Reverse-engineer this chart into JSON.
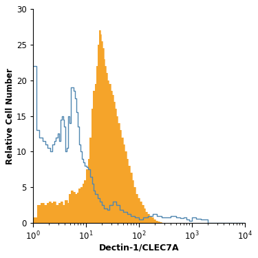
{
  "title": "",
  "xlabel": "Dectin-1/CLEC7A",
  "ylabel": "Relative Cell Number",
  "xlim_log": [
    1,
    10000
  ],
  "ylim": [
    0,
    30
  ],
  "yticks": [
    0,
    5,
    10,
    15,
    20,
    25,
    30
  ],
  "background_color": "#ffffff",
  "blue_color": "#4f86b0",
  "orange_fill_color": "#f5a42a",
  "blue_data": {
    "x": [
      1.0,
      1.15,
      1.3,
      1.5,
      1.7,
      1.9,
      2.1,
      2.3,
      2.5,
      2.7,
      2.9,
      3.1,
      3.3,
      3.5,
      3.7,
      3.9,
      4.1,
      4.3,
      4.6,
      4.9,
      5.2,
      5.5,
      5.8,
      6.2,
      6.6,
      7.0,
      7.4,
      7.9,
      8.4,
      8.9,
      9.5,
      10.2,
      11.0,
      12.0,
      13.0,
      14.0,
      15.0,
      16.5,
      18.0,
      20.0,
      22.0,
      25.0,
      28.0,
      32.0,
      37.0,
      43.0,
      50.0,
      60.0,
      70.0,
      85.0,
      100.0,
      120.0,
      150.0,
      180.0,
      220.0,
      270.0,
      330.0,
      400.0,
      500.0,
      600.0,
      700.0,
      800.0,
      900.0,
      1000.0,
      1200.0,
      1500.0,
      2000.0,
      3000.0,
      5000.0,
      10000.0
    ],
    "y": [
      22.0,
      13.0,
      12.0,
      11.5,
      11.0,
      10.5,
      10.0,
      11.0,
      11.5,
      12.0,
      12.5,
      11.5,
      14.5,
      15.0,
      14.5,
      13.5,
      10.0,
      10.5,
      15.0,
      14.0,
      19.0,
      19.0,
      18.5,
      17.5,
      15.5,
      13.5,
      11.0,
      10.0,
      9.0,
      8.5,
      8.0,
      7.8,
      7.5,
      6.5,
      5.5,
      4.5,
      4.0,
      3.5,
      3.0,
      2.5,
      2.0,
      1.8,
      2.5,
      3.0,
      2.5,
      1.8,
      1.5,
      1.2,
      1.0,
      0.8,
      0.5,
      0.8,
      1.0,
      1.2,
      1.0,
      0.8,
      0.8,
      1.0,
      0.8,
      0.7,
      0.8,
      0.5,
      0.3,
      0.8,
      0.6,
      0.5,
      0.0,
      0.0,
      0.0,
      0.0
    ]
  },
  "orange_data": {
    "x": [
      1.0,
      1.2,
      1.4,
      1.6,
      1.8,
      2.0,
      2.2,
      2.4,
      2.7,
      3.0,
      3.3,
      3.6,
      4.0,
      4.4,
      4.8,
      5.2,
      5.7,
      6.2,
      6.7,
      7.3,
      7.9,
      8.5,
      9.2,
      10.0,
      10.8,
      11.7,
      12.6,
      13.6,
      14.6,
      15.5,
      16.5,
      17.5,
      18.5,
      19.5,
      20.5,
      21.5,
      22.5,
      24.0,
      25.5,
      27.0,
      29.0,
      31.0,
      33.0,
      35.0,
      37.5,
      40.0,
      43.0,
      46.0,
      50.0,
      54.0,
      58.0,
      63.0,
      68.0,
      74.0,
      80.0,
      87.0,
      95.0,
      103.0,
      112.0,
      122.0,
      133.0,
      145.0,
      158.0,
      172.0,
      188.0,
      205.0,
      223.0,
      244.0,
      266.0,
      290.0,
      316.0,
      345.0,
      376.0,
      410.0,
      500.0,
      650.0,
      850.0,
      1200.0,
      2000.0,
      5000.0,
      10000.0
    ],
    "y": [
      0.8,
      2.5,
      2.8,
      2.5,
      2.8,
      3.0,
      2.8,
      3.0,
      2.5,
      2.8,
      3.0,
      2.5,
      3.2,
      2.8,
      4.0,
      4.5,
      4.3,
      4.0,
      4.2,
      4.8,
      5.0,
      5.5,
      6.0,
      7.5,
      9.0,
      12.0,
      16.0,
      18.5,
      19.5,
      22.0,
      25.0,
      27.0,
      26.5,
      25.5,
      24.5,
      23.0,
      22.0,
      21.0,
      20.0,
      19.5,
      18.5,
      18.0,
      17.0,
      16.0,
      15.0,
      14.0,
      13.0,
      12.0,
      11.0,
      10.0,
      9.0,
      8.0,
      7.0,
      6.0,
      5.0,
      4.0,
      3.5,
      3.0,
      2.5,
      2.0,
      1.5,
      1.2,
      1.0,
      0.8,
      0.5,
      0.3,
      0.2,
      0.1,
      0.0,
      0.0,
      0.0,
      0.0,
      0.0,
      0.0,
      0.0,
      0.0,
      0.0,
      0.0,
      0.0,
      0.0,
      0.0
    ]
  }
}
